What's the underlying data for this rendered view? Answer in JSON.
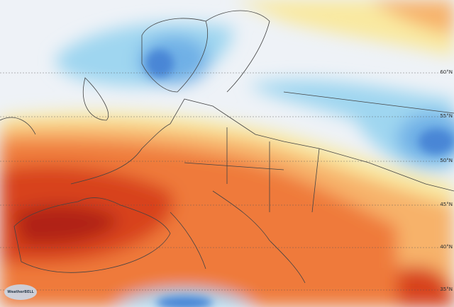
{
  "map": {
    "latitude_labels": [
      "60°N",
      "55°N",
      "50°N",
      "45°N",
      "40°N",
      "35°N"
    ],
    "watermark": "WeatherBELL",
    "colors": {
      "background": "#eef2f7",
      "light_blue": "#9fd6f0",
      "mid_blue": "#6fb0e6",
      "deep_blue": "#4a86d6",
      "yellow": "#f9e9a0",
      "light_orange": "#f7b26a",
      "orange": "#ef7a3a",
      "red": "#d8431f",
      "dark_red": "#b02412",
      "borders": "#444444"
    }
  }
}
